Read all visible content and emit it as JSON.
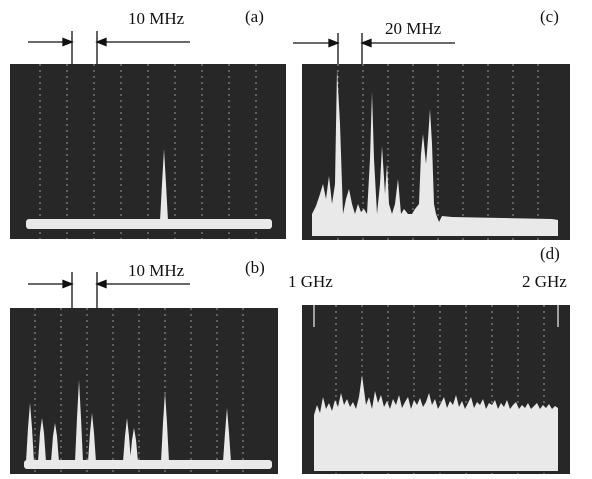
{
  "figure": {
    "panel_labels": [
      "(a)",
      "(b)",
      "(c)",
      "(d)"
    ],
    "annotations": {
      "a": "10 MHz",
      "b": "10 MHz",
      "c": "20 MHz",
      "d_left": "1 GHz",
      "d_right": "2 GHz"
    },
    "colors": {
      "screen": "#272727",
      "trace": "#e9e9e9",
      "grid": "#9a9a9a"
    }
  }
}
